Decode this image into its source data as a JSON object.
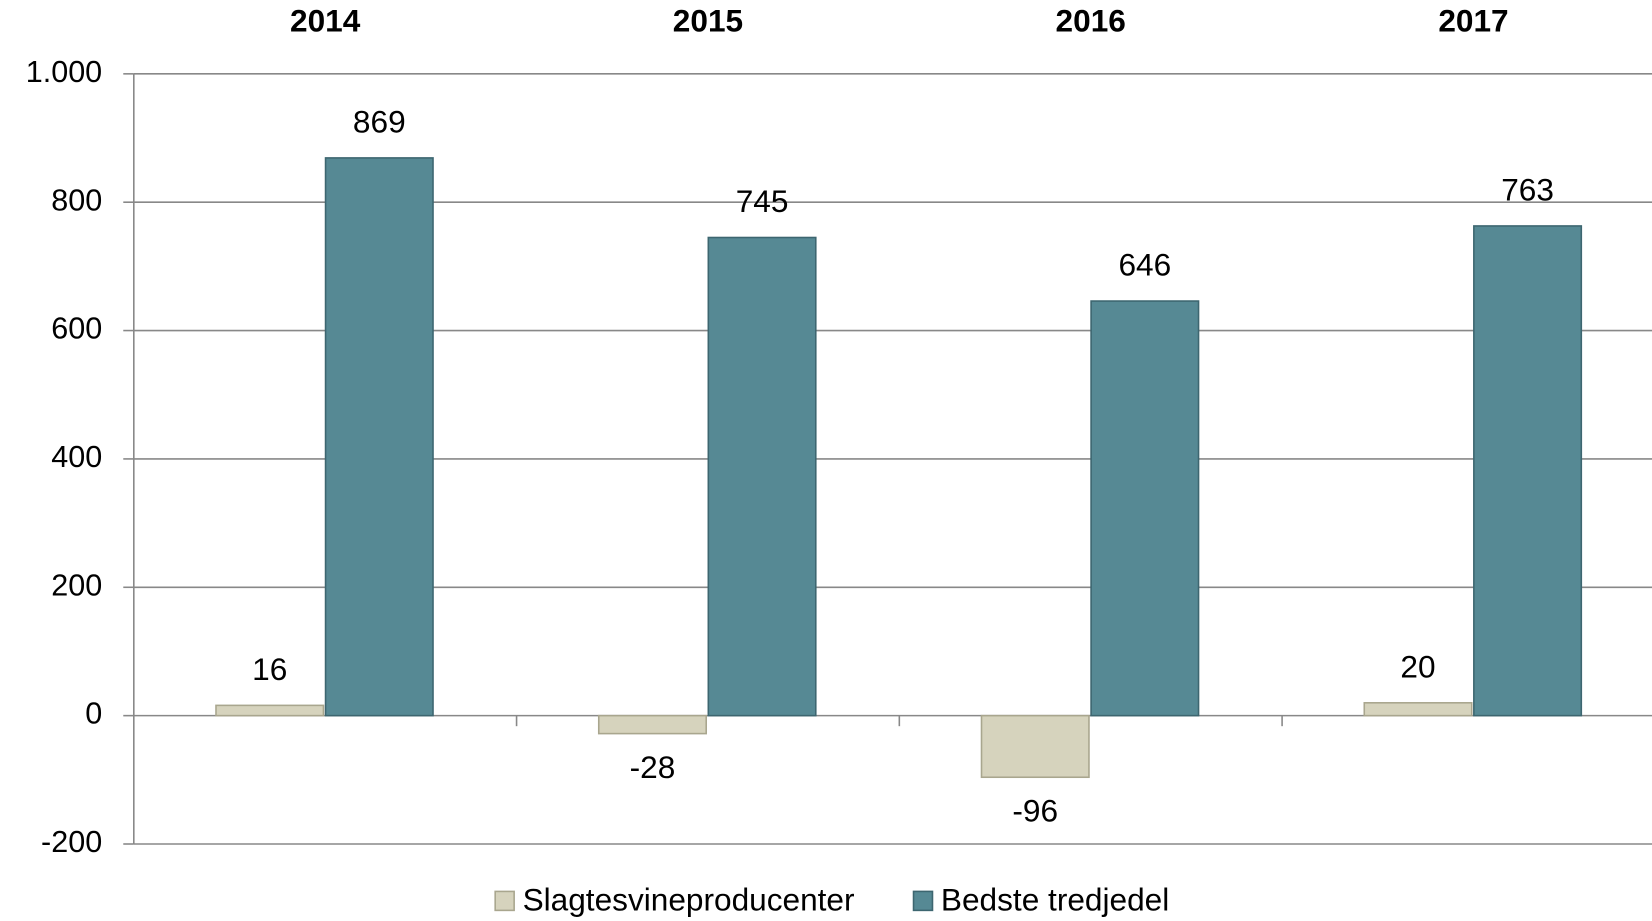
{
  "chart_data": {
    "type": "bar",
    "categories": [
      "2014",
      "2015",
      "2016",
      "2017"
    ],
    "series": [
      {
        "name": "Slagtesvineproducenter",
        "color": "#d6d3bd",
        "values": [
          16,
          -28,
          -96,
          20
        ]
      },
      {
        "name": "Bedste tredjedel",
        "color": "#568994",
        "values": [
          869,
          745,
          646,
          763
        ]
      }
    ],
    "ylim": [
      -200,
      1000
    ],
    "yticks": [
      -200,
      0,
      200,
      400,
      600,
      800,
      {
        "value": 1000,
        "label": "1.000"
      }
    ],
    "grid": true,
    "legend": "bottom"
  }
}
